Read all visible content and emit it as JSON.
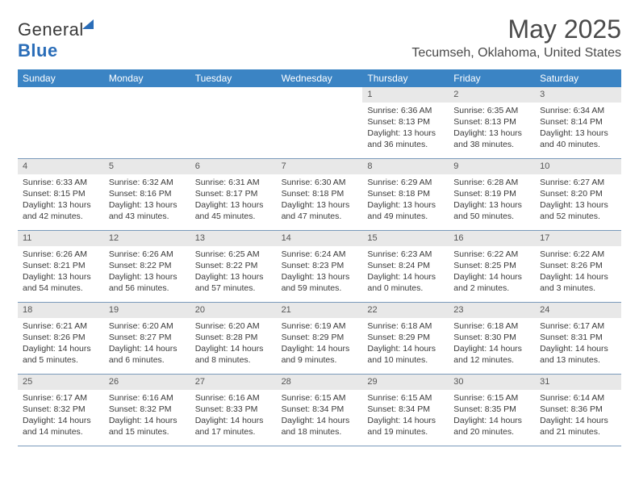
{
  "brand": {
    "part1": "General",
    "part2": "Blue"
  },
  "title": "May 2025",
  "location": "Tecumseh, Oklahoma, United States",
  "colors": {
    "header_bg": "#3b84c4",
    "header_text": "#ffffff",
    "daynum_bg": "#e8e8e8",
    "border": "#7a9abb",
    "text": "#3a3a3a",
    "title_text": "#4a4a4a"
  },
  "day_labels": [
    "Sunday",
    "Monday",
    "Tuesday",
    "Wednesday",
    "Thursday",
    "Friday",
    "Saturday"
  ],
  "weeks": [
    [
      {
        "n": "",
        "sr": "",
        "ss": "",
        "d1": "",
        "d2": ""
      },
      {
        "n": "",
        "sr": "",
        "ss": "",
        "d1": "",
        "d2": ""
      },
      {
        "n": "",
        "sr": "",
        "ss": "",
        "d1": "",
        "d2": ""
      },
      {
        "n": "",
        "sr": "",
        "ss": "",
        "d1": "",
        "d2": ""
      },
      {
        "n": "1",
        "sr": "Sunrise: 6:36 AM",
        "ss": "Sunset: 8:13 PM",
        "d1": "Daylight: 13 hours",
        "d2": "and 36 minutes."
      },
      {
        "n": "2",
        "sr": "Sunrise: 6:35 AM",
        "ss": "Sunset: 8:13 PM",
        "d1": "Daylight: 13 hours",
        "d2": "and 38 minutes."
      },
      {
        "n": "3",
        "sr": "Sunrise: 6:34 AM",
        "ss": "Sunset: 8:14 PM",
        "d1": "Daylight: 13 hours",
        "d2": "and 40 minutes."
      }
    ],
    [
      {
        "n": "4",
        "sr": "Sunrise: 6:33 AM",
        "ss": "Sunset: 8:15 PM",
        "d1": "Daylight: 13 hours",
        "d2": "and 42 minutes."
      },
      {
        "n": "5",
        "sr": "Sunrise: 6:32 AM",
        "ss": "Sunset: 8:16 PM",
        "d1": "Daylight: 13 hours",
        "d2": "and 43 minutes."
      },
      {
        "n": "6",
        "sr": "Sunrise: 6:31 AM",
        "ss": "Sunset: 8:17 PM",
        "d1": "Daylight: 13 hours",
        "d2": "and 45 minutes."
      },
      {
        "n": "7",
        "sr": "Sunrise: 6:30 AM",
        "ss": "Sunset: 8:18 PM",
        "d1": "Daylight: 13 hours",
        "d2": "and 47 minutes."
      },
      {
        "n": "8",
        "sr": "Sunrise: 6:29 AM",
        "ss": "Sunset: 8:18 PM",
        "d1": "Daylight: 13 hours",
        "d2": "and 49 minutes."
      },
      {
        "n": "9",
        "sr": "Sunrise: 6:28 AM",
        "ss": "Sunset: 8:19 PM",
        "d1": "Daylight: 13 hours",
        "d2": "and 50 minutes."
      },
      {
        "n": "10",
        "sr": "Sunrise: 6:27 AM",
        "ss": "Sunset: 8:20 PM",
        "d1": "Daylight: 13 hours",
        "d2": "and 52 minutes."
      }
    ],
    [
      {
        "n": "11",
        "sr": "Sunrise: 6:26 AM",
        "ss": "Sunset: 8:21 PM",
        "d1": "Daylight: 13 hours",
        "d2": "and 54 minutes."
      },
      {
        "n": "12",
        "sr": "Sunrise: 6:26 AM",
        "ss": "Sunset: 8:22 PM",
        "d1": "Daylight: 13 hours",
        "d2": "and 56 minutes."
      },
      {
        "n": "13",
        "sr": "Sunrise: 6:25 AM",
        "ss": "Sunset: 8:22 PM",
        "d1": "Daylight: 13 hours",
        "d2": "and 57 minutes."
      },
      {
        "n": "14",
        "sr": "Sunrise: 6:24 AM",
        "ss": "Sunset: 8:23 PM",
        "d1": "Daylight: 13 hours",
        "d2": "and 59 minutes."
      },
      {
        "n": "15",
        "sr": "Sunrise: 6:23 AM",
        "ss": "Sunset: 8:24 PM",
        "d1": "Daylight: 14 hours",
        "d2": "and 0 minutes."
      },
      {
        "n": "16",
        "sr": "Sunrise: 6:22 AM",
        "ss": "Sunset: 8:25 PM",
        "d1": "Daylight: 14 hours",
        "d2": "and 2 minutes."
      },
      {
        "n": "17",
        "sr": "Sunrise: 6:22 AM",
        "ss": "Sunset: 8:26 PM",
        "d1": "Daylight: 14 hours",
        "d2": "and 3 minutes."
      }
    ],
    [
      {
        "n": "18",
        "sr": "Sunrise: 6:21 AM",
        "ss": "Sunset: 8:26 PM",
        "d1": "Daylight: 14 hours",
        "d2": "and 5 minutes."
      },
      {
        "n": "19",
        "sr": "Sunrise: 6:20 AM",
        "ss": "Sunset: 8:27 PM",
        "d1": "Daylight: 14 hours",
        "d2": "and 6 minutes."
      },
      {
        "n": "20",
        "sr": "Sunrise: 6:20 AM",
        "ss": "Sunset: 8:28 PM",
        "d1": "Daylight: 14 hours",
        "d2": "and 8 minutes."
      },
      {
        "n": "21",
        "sr": "Sunrise: 6:19 AM",
        "ss": "Sunset: 8:29 PM",
        "d1": "Daylight: 14 hours",
        "d2": "and 9 minutes."
      },
      {
        "n": "22",
        "sr": "Sunrise: 6:18 AM",
        "ss": "Sunset: 8:29 PM",
        "d1": "Daylight: 14 hours",
        "d2": "and 10 minutes."
      },
      {
        "n": "23",
        "sr": "Sunrise: 6:18 AM",
        "ss": "Sunset: 8:30 PM",
        "d1": "Daylight: 14 hours",
        "d2": "and 12 minutes."
      },
      {
        "n": "24",
        "sr": "Sunrise: 6:17 AM",
        "ss": "Sunset: 8:31 PM",
        "d1": "Daylight: 14 hours",
        "d2": "and 13 minutes."
      }
    ],
    [
      {
        "n": "25",
        "sr": "Sunrise: 6:17 AM",
        "ss": "Sunset: 8:32 PM",
        "d1": "Daylight: 14 hours",
        "d2": "and 14 minutes."
      },
      {
        "n": "26",
        "sr": "Sunrise: 6:16 AM",
        "ss": "Sunset: 8:32 PM",
        "d1": "Daylight: 14 hours",
        "d2": "and 15 minutes."
      },
      {
        "n": "27",
        "sr": "Sunrise: 6:16 AM",
        "ss": "Sunset: 8:33 PM",
        "d1": "Daylight: 14 hours",
        "d2": "and 17 minutes."
      },
      {
        "n": "28",
        "sr": "Sunrise: 6:15 AM",
        "ss": "Sunset: 8:34 PM",
        "d1": "Daylight: 14 hours",
        "d2": "and 18 minutes."
      },
      {
        "n": "29",
        "sr": "Sunrise: 6:15 AM",
        "ss": "Sunset: 8:34 PM",
        "d1": "Daylight: 14 hours",
        "d2": "and 19 minutes."
      },
      {
        "n": "30",
        "sr": "Sunrise: 6:15 AM",
        "ss": "Sunset: 8:35 PM",
        "d1": "Daylight: 14 hours",
        "d2": "and 20 minutes."
      },
      {
        "n": "31",
        "sr": "Sunrise: 6:14 AM",
        "ss": "Sunset: 8:36 PM",
        "d1": "Daylight: 14 hours",
        "d2": "and 21 minutes."
      }
    ]
  ]
}
